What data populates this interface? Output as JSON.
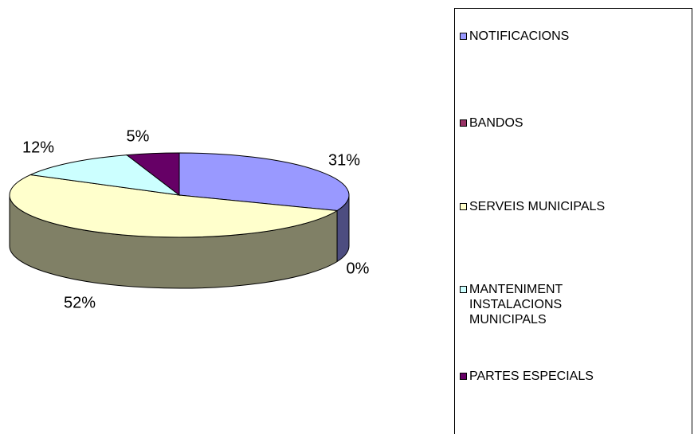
{
  "chart_data": {
    "type": "pie3d",
    "categories": [
      "NOTIFICACIONS",
      "BANDOS",
      "SERVEIS MUNICIPALS",
      "MANTENIMENT INSTALACIONS MUNICIPALS",
      "PARTES ESPECIALS"
    ],
    "values": [
      31,
      0,
      52,
      12,
      5
    ],
    "value_labels": [
      "31%",
      "0%",
      "52%",
      "12%",
      "5%"
    ],
    "colors": [
      "#9999ff",
      "#993366",
      "#ffffcc",
      "#ccffff",
      "#660066"
    ],
    "legend": "right"
  }
}
